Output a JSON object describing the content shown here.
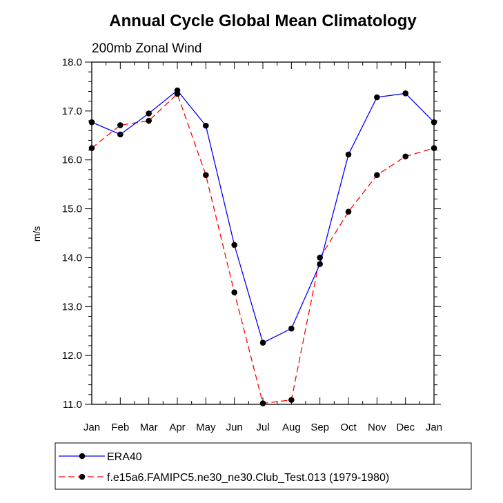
{
  "chart_data": {
    "type": "line",
    "title": "Annual Cycle Global Mean Climatology",
    "subtitle": "200mb Zonal Wind",
    "xlabel": "",
    "ylabel": "m/s",
    "categories": [
      "Jan",
      "Feb",
      "Mar",
      "Apr",
      "May",
      "Jun",
      "Jul",
      "Aug",
      "Sep",
      "Oct",
      "Nov",
      "Dec",
      "Jan"
    ],
    "ylim": [
      11.0,
      18.0
    ],
    "yticks": [
      "11.0",
      "12.0",
      "13.0",
      "14.0",
      "15.0",
      "16.0",
      "17.0",
      "18.0"
    ],
    "grid": false,
    "legend_position": "bottom",
    "series": [
      {
        "name": "ERA40",
        "color": "#0000ff",
        "line_style": "solid",
        "values": [
          16.77,
          16.52,
          16.95,
          17.42,
          16.7,
          14.26,
          12.26,
          12.55,
          13.87,
          16.11,
          17.28,
          17.36,
          16.77
        ]
      },
      {
        "name": "f.e15a6.FAMIPC5.ne30_ne30.Club_Test.013 (1979-1980)",
        "color": "#ff0000",
        "line_style": "dashed",
        "values": [
          16.24,
          16.71,
          16.8,
          17.35,
          15.69,
          13.29,
          11.02,
          11.09,
          14.0,
          14.94,
          15.69,
          16.07,
          16.24
        ]
      }
    ]
  }
}
